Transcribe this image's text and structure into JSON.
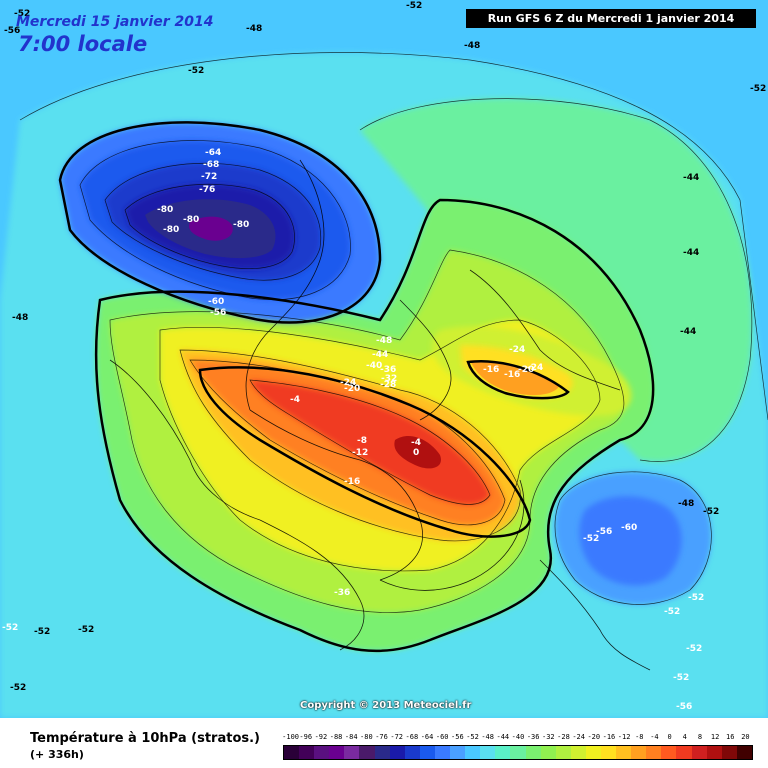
{
  "header": {
    "date": "Mercredi 15 janvier 2014",
    "time": "7:00 locale",
    "run": "Run GFS 6 Z du Mercredi 1 janvier 2014"
  },
  "footer": {
    "title": "Température à 10hPa (stratos.)",
    "lead": "(+ 336h)",
    "copyright": "Copyright © 2013 Meteociel.fr"
  },
  "legend": {
    "ticks": [
      "-100",
      "-96",
      "-92",
      "-88",
      "-84",
      "-80",
      "-76",
      "-72",
      "-68",
      "-64",
      "-60",
      "-56",
      "-52",
      "-48",
      "-44",
      "-40",
      "-36",
      "-32",
      "-28",
      "-24",
      "-20",
      "-16",
      "-12",
      "-8",
      "-4",
      "0",
      "4",
      "8",
      "12",
      "16",
      "20"
    ],
    "colors": [
      "#2a0038",
      "#420058",
      "#5a1080",
      "#6a0090",
      "#7a2aa0",
      "#4a1a6a",
      "#2a2a8a",
      "#1a1aaa",
      "#1a3acc",
      "#1a5aee",
      "#3a7aff",
      "#4aa0ff",
      "#4ac8ff",
      "#5ae0f0",
      "#5af0c8",
      "#6af0a0",
      "#7af070",
      "#90f050",
      "#b0f040",
      "#d0f030",
      "#f0f020",
      "#ffe020",
      "#ffc020",
      "#ffa020",
      "#ff8020",
      "#ff5a20",
      "#f03a20",
      "#d02020",
      "#b01010",
      "#800808",
      "#400000"
    ]
  },
  "map_labels": [
    {
      "text": "-52",
      "color": "#000"
    },
    {
      "text": "-48",
      "color": "#000"
    },
    {
      "text": "-52",
      "color": "#000"
    },
    {
      "text": "-52",
      "color": "#000"
    },
    {
      "text": "-48",
      "color": "#000"
    },
    {
      "text": "-52",
      "color": "#000"
    },
    {
      "text": "-64",
      "color": "#fff"
    },
    {
      "text": "-68",
      "color": "#fff"
    },
    {
      "text": "-72",
      "color": "#fff"
    },
    {
      "text": "-76",
      "color": "#fff"
    },
    {
      "text": "-80",
      "color": "#fff"
    },
    {
      "text": "-80",
      "color": "#fff"
    },
    {
      "text": "-80",
      "color": "#fff"
    },
    {
      "text": "-80",
      "color": "#fff"
    },
    {
      "text": "-60",
      "color": "#fff"
    },
    {
      "text": "-56",
      "color": "#fff"
    },
    {
      "text": "-48",
      "color": "#000"
    },
    {
      "text": "-44",
      "color": "#000"
    },
    {
      "text": "-44",
      "color": "#000"
    },
    {
      "text": "-44",
      "color": "#000"
    },
    {
      "text": "-48",
      "color": "#fff"
    },
    {
      "text": "-44",
      "color": "#fff"
    },
    {
      "text": "-40",
      "color": "#fff"
    },
    {
      "text": "-36",
      "color": "#fff"
    },
    {
      "text": "-32",
      "color": "#fff"
    },
    {
      "text": "-28",
      "color": "#fff"
    },
    {
      "text": "-24",
      "color": "#fff"
    },
    {
      "text": "-20",
      "color": "#fff"
    },
    {
      "text": "-24",
      "color": "#fff"
    },
    {
      "text": "-16",
      "color": "#fff"
    },
    {
      "text": "-16",
      "color": "#fff"
    },
    {
      "text": "-20",
      "color": "#fff"
    },
    {
      "text": "-24",
      "color": "#fff"
    },
    {
      "text": "-4",
      "color": "#fff"
    },
    {
      "text": "-8",
      "color": "#fff"
    },
    {
      "text": "-12",
      "color": "#fff"
    },
    {
      "text": "-4",
      "color": "#fff"
    },
    {
      "text": "0",
      "color": "#fff"
    },
    {
      "text": "-16",
      "color": "#fff"
    },
    {
      "text": "-36",
      "color": "#fff"
    },
    {
      "text": "-48",
      "color": "#000"
    },
    {
      "text": "-52",
      "color": "#000"
    },
    {
      "text": "-52",
      "color": "#fff"
    },
    {
      "text": "-56",
      "color": "#fff"
    },
    {
      "text": "-60",
      "color": "#fff"
    },
    {
      "text": "-52",
      "color": "#fff"
    },
    {
      "text": "-52",
      "color": "#fff"
    },
    {
      "text": "-52",
      "color": "#fff"
    },
    {
      "text": "-52",
      "color": "#fff"
    },
    {
      "text": "-56",
      "color": "#fff"
    },
    {
      "text": "-52",
      "color": "#fff"
    },
    {
      "text": "-52",
      "color": "#000"
    },
    {
      "text": "-52",
      "color": "#000"
    },
    {
      "text": "-52",
      "color": "#000"
    },
    {
      "text": "-56",
      "color": "#000"
    }
  ]
}
